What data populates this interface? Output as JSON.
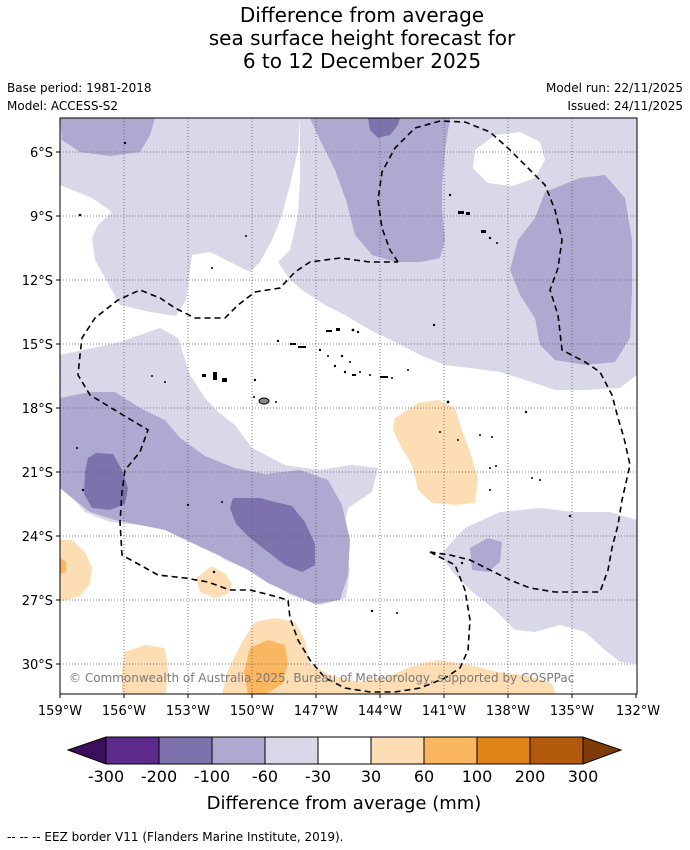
{
  "header": {
    "title_line1": "Difference from average",
    "title_line2": "sea surface height forecast for",
    "title_line3": "6 to 12 December 2025",
    "base_period": "Base period: 1981-2018",
    "model": "Model: ACCESS-S2",
    "model_run": "Model run: 22/11/2025",
    "issued": "Issued: 24/11/2025"
  },
  "map": {
    "lat_labels": [
      "6°S",
      "9°S",
      "12°S",
      "15°S",
      "18°S",
      "21°S",
      "24°S",
      "27°S",
      "30°S"
    ],
    "lon_labels": [
      "159°W",
      "156°W",
      "153°W",
      "150°W",
      "147°W",
      "144°W",
      "141°W",
      "138°W",
      "135°W",
      "132°W"
    ],
    "credit": "© Commonwealth of Australia 2025, Bureau of Meteorology, supported by COSPPac"
  },
  "colorbar": {
    "title": "Difference from average (mm)",
    "ticks": [
      "-300",
      "-200",
      "-100",
      "-60",
      "-30",
      "30",
      "60",
      "100",
      "200",
      "300"
    ],
    "colors": {
      "below_min": "#3b0f5e",
      "c1": "#5b2a8a",
      "c2": "#7e72ad",
      "c3": "#aea9d1",
      "c4": "#d8d8e9",
      "c5": "#ffffff",
      "c6": "#fddeb4",
      "c7": "#fbb660",
      "c8": "#e08417",
      "c9": "#b3590c",
      "above_max": "#7f3b08"
    }
  },
  "footnote": "--  --  -- EEZ border V11 (Flanders Marine Institute, 2019)."
}
